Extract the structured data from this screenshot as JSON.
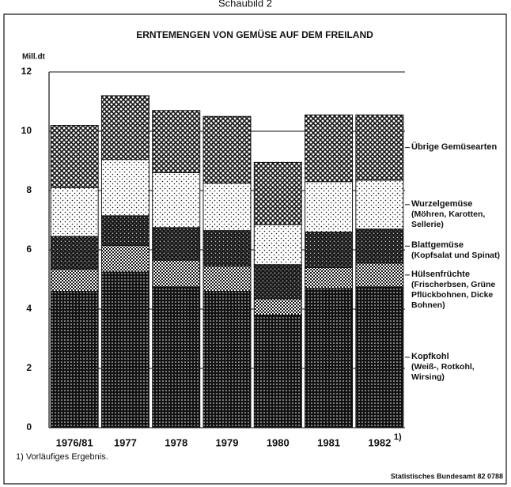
{
  "header": "Schaubild 2",
  "chart_data": {
    "type": "stacked-bar",
    "title": "ERNTEMENGEN VON GEMÜSE AUF DEM FREILAND",
    "y_label": "Mill.dt",
    "categories": [
      "1976/81",
      "1977",
      "1978",
      "1979",
      "1980",
      "1981",
      "1982"
    ],
    "category_footnote_marker": "1)",
    "series": [
      {
        "name": "Kopfkohl",
        "description": "(Weiß-, Rotkohl, Wirsing)",
        "color": "#111111",
        "pattern": "dense-dots",
        "values": [
          4.6,
          5.25,
          4.75,
          4.6,
          3.8,
          4.7,
          4.75
        ]
      },
      {
        "name": "Hülsenfrüchte",
        "description": "(Frischerbsen, Grüne Pflückbohnen, Dicke Bohnen)",
        "color": "#111111",
        "pattern": "checker",
        "values": [
          0.75,
          0.9,
          0.9,
          0.85,
          0.55,
          0.7,
          0.8
        ]
      },
      {
        "name": "Blattgemüse",
        "description": "(Kopfsalat und Spinat)",
        "color": "#111111",
        "pattern": "crosshatch",
        "values": [
          1.1,
          1.0,
          1.1,
          1.2,
          1.15,
          1.2,
          1.15
        ]
      },
      {
        "name": "Wurzelgemüse",
        "description": "(Möhren, Karotten, Sellerie)",
        "color": "#111111",
        "pattern": "sparse-dots",
        "values": [
          1.65,
          1.9,
          1.85,
          1.6,
          1.35,
          1.7,
          1.65
        ]
      },
      {
        "name": "Übrige Gemüsearten",
        "color": "#111111",
        "pattern": "diamonds",
        "values": [
          2.1,
          2.15,
          2.1,
          2.25,
          2.1,
          2.25,
          2.2
        ]
      }
    ],
    "ylim": [
      0,
      12
    ],
    "yticks": [
      0,
      2,
      4,
      6,
      8,
      10,
      12
    ],
    "grid": true,
    "footnote": "1) Vorläufiges Ergebnis.",
    "source": "Statistisches Bundesamt 82 0788"
  }
}
